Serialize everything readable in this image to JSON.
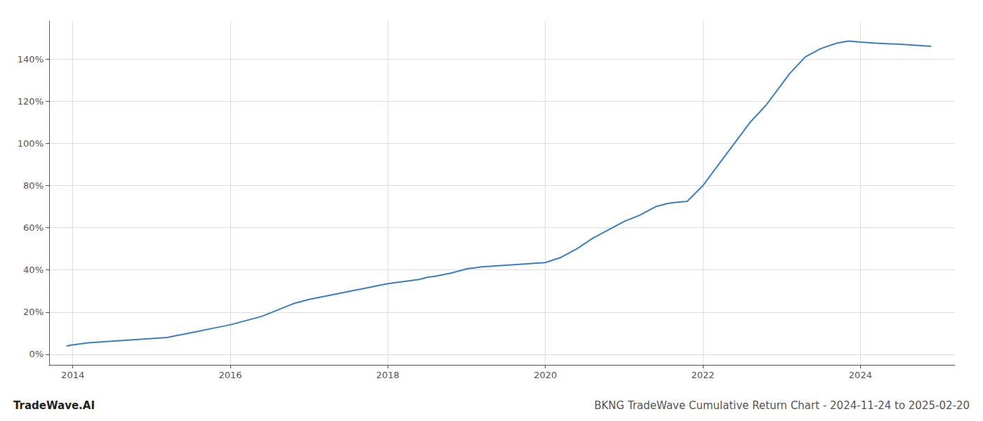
{
  "chart_data": {
    "type": "line",
    "title": "TradeWave.AI",
    "subtitle": "BKNG TradeWave Cumulative Return Chart - 2024-11-24 to 2025-02-20",
    "x": [
      2013.92,
      2014.0,
      2014.2,
      2014.4,
      2014.6,
      2014.8,
      2015.0,
      2015.2,
      2015.4,
      2015.6,
      2015.8,
      2016.0,
      2016.2,
      2016.4,
      2016.6,
      2016.8,
      2017.0,
      2017.2,
      2017.4,
      2017.6,
      2017.8,
      2018.0,
      2018.2,
      2018.4,
      2018.5,
      2018.6,
      2018.8,
      2019.0,
      2019.2,
      2019.4,
      2019.6,
      2019.8,
      2020.0,
      2020.2,
      2020.4,
      2020.6,
      2020.8,
      2021.0,
      2021.2,
      2021.4,
      2021.55,
      2021.65,
      2021.8,
      2022.0,
      2022.2,
      2022.4,
      2022.6,
      2022.8,
      2023.0,
      2023.1,
      2023.2,
      2023.3,
      2023.5,
      2023.7,
      2023.85,
      2024.0,
      2024.2,
      2024.5,
      2024.7,
      2024.9
    ],
    "values": [
      4.0,
      4.5,
      5.5,
      6.0,
      6.5,
      7.0,
      7.5,
      8.0,
      9.5,
      11.0,
      12.5,
      14.0,
      16.0,
      18.0,
      21.0,
      24.0,
      26.0,
      27.5,
      29.0,
      30.5,
      32.0,
      33.5,
      34.5,
      35.5,
      36.5,
      37.0,
      38.5,
      40.5,
      41.5,
      42.0,
      42.5,
      43.0,
      43.5,
      46.0,
      50.0,
      55.0,
      59.0,
      63.0,
      66.0,
      70.0,
      71.5,
      72.0,
      72.5,
      80.0,
      90.0,
      100.0,
      110.0,
      118.0,
      128.0,
      133.0,
      137.0,
      141.0,
      145.0,
      147.5,
      148.5,
      148.0,
      147.5,
      147.0,
      146.5,
      146.0
    ],
    "color": "#3a7ebf",
    "xlim": [
      2013.7,
      2025.2
    ],
    "xticks": [
      2014,
      2016,
      2018,
      2020,
      2022,
      2024
    ],
    "ylim": [
      -5,
      158
    ],
    "yticks": [
      {
        "value": 0,
        "label": "0%"
      },
      {
        "value": 20,
        "label": "20%"
      },
      {
        "value": 40,
        "label": "40%"
      },
      {
        "value": 60,
        "label": "60%"
      },
      {
        "value": 80,
        "label": "80%"
      },
      {
        "value": 100,
        "label": "100%"
      },
      {
        "value": 120,
        "label": "120%"
      },
      {
        "value": 140,
        "label": "140%"
      }
    ],
    "grid": true
  }
}
